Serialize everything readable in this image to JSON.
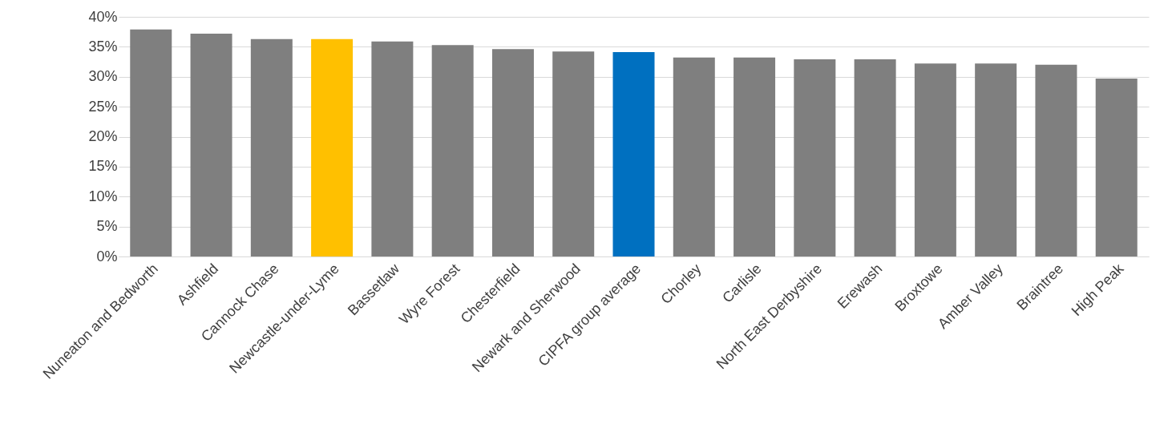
{
  "chart_data": {
    "type": "bar",
    "categories": [
      "Nuneaton and Bedworth",
      "Ashfield",
      "Cannock Chase",
      "Newcastle-under-Lyme",
      "Bassetlaw",
      "Wyre Forest",
      "Chesterfield",
      "Newark and Sherwood",
      "CIPFA group average",
      "Chorley",
      "Carlisle",
      "North East Derbyshire",
      "Erewash",
      "Broxtowe",
      "Amber Valley",
      "Braintree",
      "High Peak"
    ],
    "values": [
      37.9,
      37.2,
      36.3,
      36.3,
      35.9,
      35.3,
      34.6,
      34.2,
      34.1,
      33.2,
      33.2,
      32.9,
      32.9,
      32.2,
      32.2,
      32.0,
      29.7
    ],
    "colors": [
      "#7f7f7f",
      "#7f7f7f",
      "#7f7f7f",
      "#ffc000",
      "#7f7f7f",
      "#7f7f7f",
      "#7f7f7f",
      "#7f7f7f",
      "#0070c0",
      "#7f7f7f",
      "#7f7f7f",
      "#7f7f7f",
      "#7f7f7f",
      "#7f7f7f",
      "#7f7f7f",
      "#7f7f7f",
      "#7f7f7f"
    ],
    "ylim": [
      0,
      40
    ],
    "yticks": [
      {
        "value": 0,
        "label": "0%"
      },
      {
        "value": 5,
        "label": "5%"
      },
      {
        "value": 10,
        "label": "10%"
      },
      {
        "value": 15,
        "label": "15%"
      },
      {
        "value": 20,
        "label": "20%"
      },
      {
        "value": 25,
        "label": "25%"
      },
      {
        "value": 30,
        "label": "30%"
      },
      {
        "value": 35,
        "label": "35%"
      },
      {
        "value": 40,
        "label": "40%"
      }
    ],
    "grid": "y"
  }
}
